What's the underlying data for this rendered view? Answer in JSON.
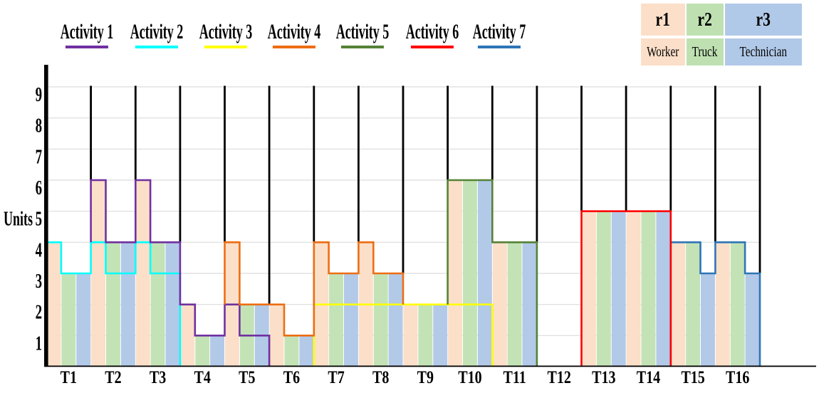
{
  "legend": {
    "activities": [
      {
        "label": "Activity 1",
        "color": "#7030A0"
      },
      {
        "label": "Activity 2",
        "color": "#00FFFF"
      },
      {
        "label": "Activity 3",
        "color": "#FFFF00"
      },
      {
        "label": "Activity 4",
        "color": "#ED6D13"
      },
      {
        "label": "Activity 5",
        "color": "#548235"
      },
      {
        "label": "Activity 6",
        "color": "#FF0000"
      },
      {
        "label": "Activity 7",
        "color": "#2E75B6"
      }
    ]
  },
  "resource_table": {
    "columns": [
      {
        "id": "r1",
        "name": "Worker",
        "color": "#FBDFC9"
      },
      {
        "id": "r2",
        "name": "Truck",
        "color": "#BFE1B2"
      },
      {
        "id": "r3",
        "name": "Technician",
        "color": "#B1C9E8"
      }
    ]
  },
  "chart_data": {
    "type": "step-area-resource-profile",
    "title": "",
    "xlabel": "",
    "ylabel": "Units",
    "ylim": [
      0,
      9
    ],
    "y_ticks": [
      1,
      2,
      3,
      4,
      5,
      6,
      7,
      8,
      9
    ],
    "grid": true,
    "categories": [
      "T1",
      "T2",
      "T3",
      "T4",
      "T5",
      "T6",
      "T7",
      "T8",
      "T9",
      "T10",
      "T11",
      "T12",
      "T13",
      "T14",
      "T15",
      "T16"
    ],
    "resources": [
      {
        "id": "r1",
        "name": "Worker",
        "color": "#FBDFC9"
      },
      {
        "id": "r2",
        "name": "Truck",
        "color": "#C3E3B6"
      },
      {
        "id": "r3",
        "name": "Technician",
        "color": "#B3C9E8"
      }
    ],
    "bars_units_per_resource": [
      [
        4,
        3,
        3
      ],
      [
        6,
        4,
        4
      ],
      [
        6,
        4,
        4
      ],
      [
        2,
        1,
        1
      ],
      [
        4,
        2,
        2
      ],
      [
        2,
        1,
        1
      ],
      [
        4,
        3,
        3
      ],
      [
        4,
        3,
        3
      ],
      [
        2,
        2,
        2
      ],
      [
        6,
        6,
        6
      ],
      [
        4,
        4,
        4
      ],
      [
        0,
        0,
        0
      ],
      [
        5,
        5,
        5
      ],
      [
        5,
        5,
        5
      ],
      [
        4,
        4,
        3
      ],
      [
        4,
        4,
        3
      ]
    ],
    "activities": [
      {
        "name": "Activity 3",
        "color": "#FFFF00",
        "start_period": 7,
        "entry_level": 0,
        "exit_level": 0,
        "levels": [
          [
            2,
            2,
            2
          ],
          [
            2,
            2,
            2
          ],
          [
            2,
            2,
            2
          ],
          [
            2,
            2,
            2
          ]
        ]
      },
      {
        "name": "Activity 2",
        "color": "#00FFFF",
        "start_period": 1,
        "entry_level": 0,
        "exit_level": 0,
        "levels": [
          [
            4,
            3,
            3
          ],
          [
            4,
            3,
            3
          ],
          [
            4,
            3,
            3
          ]
        ]
      },
      {
        "name": "Activity 1",
        "color": "#7030A0",
        "start_period": 2,
        "entry_level": 4,
        "exit_level": 0,
        "levels": [
          [
            6,
            4,
            4
          ],
          [
            6,
            4,
            4
          ],
          [
            2,
            1,
            1
          ],
          [
            2,
            1,
            1
          ]
        ]
      },
      {
        "name": "Activity 4",
        "color": "#ED6D13",
        "start_period": 5,
        "entry_level": 2,
        "exit_level": 2,
        "levels": [
          [
            4,
            2,
            2
          ],
          [
            2,
            1,
            1
          ],
          [
            4,
            3,
            3
          ],
          [
            4,
            3,
            3
          ]
        ]
      },
      {
        "name": "Activity 5",
        "color": "#548235",
        "start_period": 10,
        "entry_level": 2,
        "exit_level": 0,
        "levels": [
          [
            6,
            6,
            6
          ],
          [
            4,
            4,
            4
          ]
        ]
      },
      {
        "name": "Activity 7",
        "color": "#2E75B6",
        "start_period": 15,
        "entry_level": 0,
        "exit_level": 0,
        "levels": [
          [
            4,
            4,
            3
          ],
          [
            4,
            4,
            3
          ]
        ]
      },
      {
        "name": "Activity 6",
        "color": "#FF0000",
        "start_period": 13,
        "entry_level": 0,
        "exit_level": 0,
        "levels": [
          [
            5,
            5,
            5
          ],
          [
            5,
            5,
            5
          ]
        ]
      }
    ],
    "colors": {
      "axis": "#000000",
      "separator": "#000000",
      "gridline": "#DCDCDC"
    }
  }
}
